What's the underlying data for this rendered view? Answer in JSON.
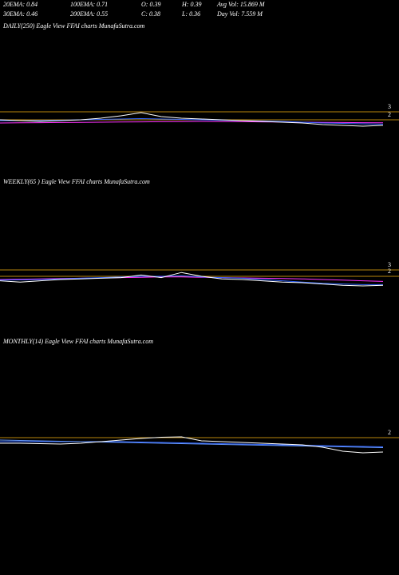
{
  "chart_data": [
    {
      "type": "line",
      "title": "DAILY(250) Eagle   View  FFAI charts MunafaSutra.com",
      "annotations": [
        "20EMA: 0.84",
        "100EMA: 0.71",
        "O: 0.39",
        "H: 0.39",
        "Avg Vol: 15.869 M",
        "30EMA: 0.46",
        "200EMA: 0.55",
        "C: 0.38",
        "L: 0.36",
        "Day Vol: 7.559 M"
      ],
      "categories": [
        null,
        null,
        null,
        null,
        null,
        null,
        null,
        null,
        null,
        null,
        null,
        null,
        null,
        null,
        null,
        null,
        null,
        null,
        null,
        null
      ],
      "ylim": [
        -5.5,
        14
      ],
      "yticks": [
        3,
        2
      ],
      "grid": true,
      "grid_color": "#b8860b",
      "series": [
        {
          "color": "#ff33ff",
          "values": [
            1.6,
            1.62,
            1.64,
            1.66,
            1.68,
            1.7,
            1.72,
            1.74,
            1.76,
            1.78,
            1.8,
            1.78,
            1.76,
            1.74,
            1.72,
            1.7,
            1.68,
            1.66,
            1.64,
            1.62
          ]
        },
        {
          "color": "#3366ff",
          "values": [
            1.9,
            1.9,
            1.9,
            1.95,
            2,
            2.05,
            2.1,
            2.15,
            2.1,
            2.05,
            2,
            1.95,
            1.9,
            1.85,
            1.8,
            1.7,
            1.6,
            1.55,
            1.5,
            1.45
          ]
        },
        {
          "color": "#ffffff",
          "values": [
            2,
            1.9,
            1.8,
            1.9,
            2,
            2.2,
            2.5,
            2.9,
            2.4,
            2.2,
            2.1,
            2,
            1.9,
            1.8,
            1.7,
            1.6,
            1.4,
            1.3,
            1.2,
            1.3
          ]
        }
      ]
    },
    {
      "type": "line",
      "title": "WEEKLY(65   ) Eagle  View  FFAI charts MunafaSutra.com",
      "categories": [
        null,
        null,
        null,
        null,
        null,
        null,
        null,
        null,
        null,
        null,
        null,
        null,
        null,
        null,
        null,
        null,
        null,
        null,
        null,
        null
      ],
      "ylim": [
        -7.25,
        17.125
      ],
      "yticks": [
        3,
        2
      ],
      "grid": true,
      "grid_color": "#b8860b",
      "series": [
        {
          "color": "#ff33ff",
          "values": [
            1.5,
            1.55,
            1.6,
            1.65,
            1.7,
            1.75,
            1.8,
            1.85,
            1.9,
            1.9,
            1.85,
            1.8,
            1.75,
            1.7,
            1.65,
            1.6,
            1.5,
            1.4,
            1.3,
            1.2
          ]
        },
        {
          "color": "#3366ff",
          "values": [
            1.4,
            1.45,
            1.5,
            1.6,
            1.7,
            1.8,
            1.9,
            2.0,
            2.0,
            2.1,
            1.9,
            1.8,
            1.7,
            1.5,
            1.3,
            1.1,
            0.9,
            0.8,
            0.7,
            0.7
          ]
        },
        {
          "color": "#ffffff",
          "values": [
            1.3,
            1.1,
            1.3,
            1.5,
            1.6,
            1.7,
            1.8,
            2.2,
            1.8,
            2.6,
            2,
            1.6,
            1.5,
            1.3,
            1.1,
            1,
            0.8,
            0.6,
            0.5,
            0.6
          ]
        }
      ]
    },
    {
      "type": "line",
      "title": "MONTHLY(14) Eagle  View  FFAI charts MunafaSutra.com",
      "categories": [
        null,
        null,
        null,
        null,
        null,
        null,
        null,
        null,
        null,
        null,
        null,
        null,
        null,
        null,
        null,
        null,
        null,
        null,
        null,
        null
      ],
      "ylim": [
        -14.7,
        14.3
      ],
      "yticks": [
        2
      ],
      "grid": true,
      "grid_color": "#b8860b",
      "series": [
        {
          "color": "#3366ff",
          "values": [
            1.5,
            1.5,
            1.5,
            1.5,
            1.5,
            1.5,
            1.5,
            1.45,
            1.4,
            1.35,
            1.3,
            1.25,
            1.2,
            1.15,
            1.1,
            1.05,
            1.0,
            0.95,
            0.9,
            0.85
          ]
        },
        {
          "color": "#6699ff",
          "values": [
            1.7,
            1.65,
            1.6,
            1.55,
            1.5,
            1.45,
            1.4,
            1.35,
            1.3,
            1.25,
            1.2,
            1.15,
            1.1,
            1.05,
            1.0,
            0.95,
            0.9,
            0.85,
            0.8,
            0.75
          ]
        },
        {
          "color": "#ffffff",
          "values": [
            1.3,
            1.3,
            1.25,
            1.2,
            1.3,
            1.5,
            1.7,
            1.9,
            2.05,
            2.1,
            1.6,
            1.5,
            1.4,
            1.3,
            1.2,
            1.1,
            0.8,
            0.3,
            0.1,
            0.2
          ]
        }
      ]
    }
  ]
}
